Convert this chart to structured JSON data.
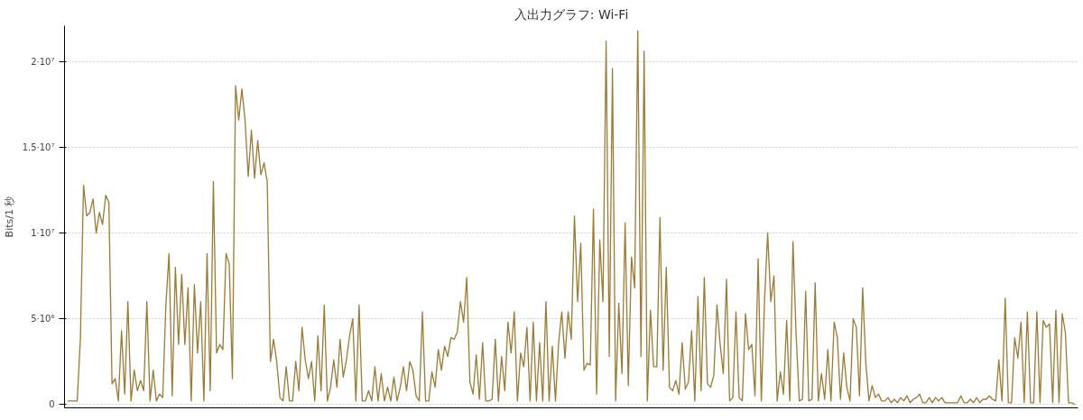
{
  "chart_data": {
    "type": "line",
    "title": "入出力グラフ: Wi-Fi",
    "ylabel": "Bits/1 秒",
    "categories": [
      null,
      null,
      null,
      null,
      null,
      null,
      null,
      null,
      null,
      null,
      null,
      null,
      null,
      null,
      null,
      null,
      null,
      null,
      null,
      null,
      null,
      null,
      null,
      null,
      null,
      null,
      null,
      null,
      null,
      null,
      null,
      null,
      null,
      null,
      null,
      null,
      null,
      null,
      null,
      null,
      null,
      null,
      null,
      null,
      null,
      null,
      null,
      null,
      null,
      null,
      null,
      null,
      null,
      null,
      null,
      null,
      null,
      null,
      null,
      null,
      null,
      null,
      null,
      null,
      null,
      null,
      null,
      null,
      null,
      null,
      null,
      null,
      null,
      null,
      null,
      null,
      null,
      null,
      null,
      null,
      null,
      null,
      null,
      null,
      null,
      null,
      null,
      null,
      null,
      null,
      null,
      null,
      null,
      null,
      null,
      null,
      null,
      null,
      null,
      null,
      null,
      null,
      null,
      null,
      null,
      null,
      null,
      null,
      null,
      null,
      null,
      null,
      null,
      null,
      null,
      null,
      null,
      null,
      null,
      null,
      null,
      null,
      null,
      null,
      null,
      null,
      null,
      null,
      null,
      null,
      null,
      null,
      null,
      null,
      null,
      null,
      null,
      null,
      null,
      null,
      null,
      null,
      null,
      null,
      null,
      null,
      null,
      null,
      null,
      null,
      null,
      null,
      null,
      null,
      null,
      null,
      null,
      null,
      null,
      null,
      null,
      null,
      null,
      null,
      null,
      null,
      null,
      null,
      null,
      null,
      null,
      null,
      null,
      null,
      null,
      null,
      null,
      null,
      null,
      null,
      null,
      null,
      null,
      null,
      null,
      null,
      null,
      null,
      null,
      null,
      null,
      null,
      null,
      null,
      null,
      null,
      null,
      null,
      null,
      null,
      null,
      null,
      null,
      null,
      null,
      null,
      null,
      null,
      null,
      null,
      null,
      null,
      null,
      null,
      null,
      null,
      null,
      null,
      null,
      null,
      null,
      null,
      null,
      null,
      null,
      null,
      null,
      null,
      null,
      null,
      null,
      null,
      null,
      null,
      null,
      null,
      null,
      null,
      null,
      null,
      null,
      null,
      null,
      null,
      null,
      null,
      null,
      null,
      null,
      null,
      null,
      null,
      null,
      null,
      null,
      null,
      null,
      null,
      null,
      null,
      null,
      null,
      null,
      null,
      null,
      null,
      null,
      null,
      null,
      null,
      null,
      null,
      null,
      null,
      null,
      null,
      null,
      null,
      null,
      null,
      null,
      null,
      null,
      null,
      null,
      null,
      null,
      null,
      null,
      null,
      null,
      null,
      null,
      null,
      null,
      null,
      null,
      null,
      null,
      null,
      null,
      null,
      null,
      null,
      null,
      null,
      null,
      null,
      null,
      null,
      null,
      null,
      null,
      null,
      null,
      null,
      null,
      null,
      null
    ],
    "series": [
      {
        "color": "#9a7a34",
        "values": [
          200000,
          200000,
          200000,
          200000,
          3800000,
          12800000,
          11000000,
          11200000,
          12000000,
          10000000,
          11200000,
          10500000,
          12200000,
          11800000,
          1200000,
          1500000,
          200000,
          4300000,
          600000,
          6000000,
          200000,
          2000000,
          800000,
          1400000,
          800000,
          6000000,
          200000,
          2000000,
          200000,
          600000,
          400000,
          5800000,
          8800000,
          500000,
          8000000,
          3500000,
          7600000,
          3500000,
          6800000,
          200000,
          7000000,
          3000000,
          6000000,
          200000,
          8800000,
          800000,
          13000000,
          3000000,
          3500000,
          3200000,
          8800000,
          8200000,
          1500000,
          18600000,
          16600000,
          18400000,
          16600000,
          13300000,
          16000000,
          13200000,
          15400000,
          13400000,
          14100000,
          13000000,
          2500000,
          3800000,
          2500000,
          400000,
          200000,
          2200000,
          200000,
          200000,
          2500000,
          800000,
          4500000,
          2600000,
          1500000,
          2500000,
          200000,
          4000000,
          800000,
          5800000,
          200000,
          1000000,
          2600000,
          1000000,
          3800000,
          1600000,
          2600000,
          4000000,
          5000000,
          200000,
          5800000,
          200000,
          200000,
          800000,
          200000,
          2200000,
          200000,
          1800000,
          200000,
          1000000,
          200000,
          1600000,
          200000,
          1000000,
          2200000,
          800000,
          2500000,
          2000000,
          500000,
          200000,
          5400000,
          200000,
          200000,
          1900000,
          1000000,
          3200000,
          2000000,
          3400000,
          2800000,
          3900000,
          3800000,
          4200000,
          6000000,
          4800000,
          7400000,
          1300000,
          600000,
          2900000,
          300000,
          3600000,
          200000,
          200000,
          300000,
          3800000,
          200000,
          2800000,
          800000,
          4800000,
          3000000,
          5400000,
          200000,
          3000000,
          2200000,
          4500000,
          200000,
          4800000,
          200000,
          3600000,
          200000,
          6000000,
          200000,
          3400000,
          200000,
          3600000,
          5400000,
          2700000,
          5400000,
          3800000,
          11000000,
          6000000,
          9400000,
          2000000,
          2400000,
          2300000,
          11400000,
          600000,
          9600000,
          6000000,
          21200000,
          2800000,
          19600000,
          200000,
          5900000,
          1800000,
          10600000,
          1100000,
          8600000,
          6800000,
          21800000,
          2800000,
          20600000,
          200000,
          5500000,
          2200000,
          2200000,
          10900000,
          2000000,
          8000000,
          1000000,
          800000,
          1400000,
          600000,
          3600000,
          900000,
          1300000,
          4300000,
          200000,
          6300000,
          800000,
          7400000,
          1200000,
          1000000,
          1700000,
          5800000,
          3500000,
          1800000,
          7300000,
          200000,
          400000,
          5400000,
          400000,
          200000,
          5300000,
          3200000,
          3500000,
          500000,
          8500000,
          200000,
          6000000,
          10000000,
          6000000,
          7500000,
          200000,
          1900000,
          600000,
          4900000,
          200000,
          9500000,
          4000000,
          200000,
          300000,
          6600000,
          200000,
          300000,
          7100000,
          200000,
          1800000,
          300000,
          3200000,
          200000,
          4800000,
          3900000,
          300000,
          3000000,
          1000000,
          200000,
          5000000,
          4500000,
          500000,
          6800000,
          2400000,
          200000,
          1100000,
          400000,
          600000,
          200000,
          200000,
          400000,
          100000,
          300000,
          100000,
          400000,
          200000,
          500000,
          100000,
          300000,
          400000,
          600000,
          100000,
          100000,
          400000,
          100000,
          400000,
          200000,
          400000,
          100000,
          100000,
          100000,
          100000,
          100000,
          500000,
          100000,
          100000,
          300000,
          100000,
          400000,
          100000,
          300000,
          300000,
          500000,
          300000,
          200000,
          2600000,
          200000,
          6200000,
          100000,
          100000,
          3900000,
          2700000,
          4800000,
          100000,
          5400000,
          100000,
          100000,
          5400000,
          100000,
          4900000,
          4500000,
          4700000,
          100000,
          5500000,
          100000,
          5300000,
          4200000,
          100000,
          100000,
          0
        ]
      }
    ],
    "ylim": [
      -200000,
      22100000
    ],
    "yticks": [
      0,
      {
        "value": 5000000,
        "label": "5·10⁶"
      },
      {
        "value": 10000000,
        "label": "1·10⁷"
      },
      {
        "value": 15000000,
        "label": "1.5·10⁷"
      },
      {
        "value": 20000000,
        "label": "2·10⁷"
      }
    ],
    "grid": "y",
    "tick_labels": "y"
  }
}
